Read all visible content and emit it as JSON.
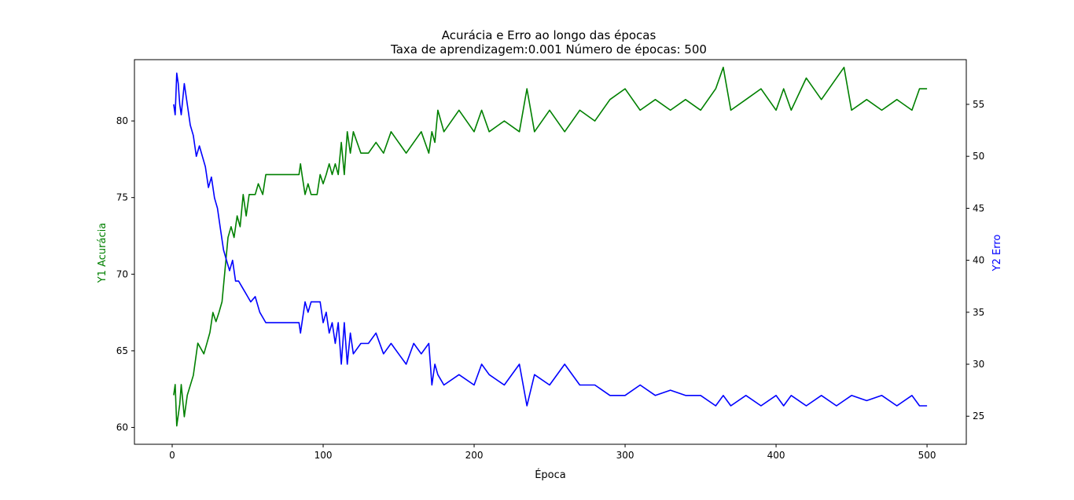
{
  "chart_data": {
    "type": "line",
    "title": "Acurácia e Erro ao longo das épocas",
    "subtitle": "Taxa de aprendizagem:0.001 Número de épocas: 500",
    "xlabel": "Época",
    "ylabel_left": "Y1 Acurácia",
    "ylabel_right": "Y2 Erro",
    "xlim": [
      -25,
      526
    ],
    "ylim_left": [
      58.9,
      84.0
    ],
    "ylim_right": [
      22.3,
      59.3
    ],
    "x_ticks": [
      0,
      100,
      200,
      300,
      400,
      500
    ],
    "y_left_ticks": [
      60,
      65,
      70,
      75,
      80
    ],
    "y_right_ticks": [
      25,
      30,
      35,
      40,
      45,
      50,
      55
    ],
    "grid": false,
    "series": [
      {
        "name": "Y1 Acurácia",
        "axis": "left",
        "color": "#008000",
        "x": [
          1,
          2,
          3,
          5,
          6,
          8,
          10,
          14,
          15,
          17,
          21,
          23,
          25,
          27,
          29,
          31,
          33,
          35,
          37,
          39,
          41,
          43,
          45,
          47,
          49,
          51,
          55,
          57,
          60,
          62,
          65,
          70,
          75,
          80,
          84,
          85,
          86,
          88,
          90,
          92,
          94,
          96,
          98,
          100,
          102,
          104,
          106,
          108,
          110,
          112,
          114,
          116,
          118,
          120,
          125,
          130,
          135,
          140,
          145,
          150,
          155,
          160,
          165,
          170,
          172,
          174,
          176,
          180,
          190,
          200,
          205,
          210,
          220,
          230,
          235,
          240,
          250,
          260,
          270,
          280,
          290,
          300,
          310,
          320,
          330,
          340,
          350,
          360,
          365,
          370,
          380,
          390,
          400,
          405,
          410,
          420,
          430,
          440,
          445,
          450,
          460,
          470,
          480,
          490,
          495,
          500
        ],
        "values": [
          62.1,
          62.8,
          60.1,
          61.5,
          62.8,
          60.7,
          62.1,
          63.4,
          64.1,
          65.5,
          64.8,
          65.5,
          66.2,
          67.5,
          66.9,
          67.5,
          68.2,
          70.3,
          72.4,
          73.1,
          72.4,
          73.8,
          73.1,
          75.2,
          73.8,
          75.2,
          75.2,
          75.9,
          75.2,
          76.5,
          76.5,
          76.5,
          76.5,
          76.5,
          76.5,
          77.2,
          76.5,
          75.2,
          75.9,
          75.2,
          75.2,
          75.2,
          76.5,
          75.9,
          76.5,
          77.2,
          76.5,
          77.2,
          76.5,
          78.6,
          76.5,
          79.3,
          77.9,
          79.3,
          77.9,
          77.9,
          78.6,
          77.9,
          79.3,
          78.6,
          77.9,
          78.6,
          79.3,
          77.9,
          79.3,
          78.6,
          80.7,
          79.3,
          80.7,
          79.3,
          80.7,
          79.3,
          80.0,
          79.3,
          82.1,
          79.3,
          80.7,
          79.3,
          80.7,
          80.0,
          81.4,
          82.1,
          80.7,
          81.4,
          80.7,
          81.4,
          80.7,
          82.1,
          83.5,
          80.7,
          81.4,
          82.1,
          80.7,
          82.1,
          80.7,
          82.8,
          81.4,
          82.8,
          83.5,
          80.7,
          81.4,
          80.7,
          81.4,
          80.7,
          82.1,
          82.1
        ]
      },
      {
        "name": "Y2 Erro",
        "axis": "right",
        "color": "#0000ff",
        "x": [
          1,
          2,
          3,
          4,
          5,
          6,
          8,
          10,
          12,
          14,
          16,
          18,
          20,
          22,
          24,
          26,
          28,
          30,
          32,
          34,
          36,
          38,
          40,
          42,
          44,
          46,
          48,
          50,
          52,
          55,
          58,
          60,
          62,
          65,
          70,
          75,
          80,
          84,
          85,
          86,
          88,
          90,
          92,
          94,
          96,
          98,
          100,
          102,
          104,
          106,
          108,
          110,
          112,
          114,
          116,
          118,
          120,
          125,
          130,
          135,
          140,
          145,
          150,
          155,
          160,
          165,
          170,
          172,
          174,
          176,
          180,
          190,
          200,
          205,
          210,
          220,
          230,
          235,
          240,
          250,
          260,
          270,
          280,
          290,
          300,
          310,
          320,
          330,
          340,
          350,
          360,
          365,
          370,
          380,
          390,
          400,
          405,
          410,
          420,
          430,
          440,
          445,
          450,
          460,
          470,
          480,
          490,
          495,
          500
        ],
        "values": [
          55.0,
          54.0,
          58.0,
          57.0,
          55.0,
          54.0,
          57.0,
          55.0,
          53.0,
          52.0,
          50.0,
          51.0,
          50.0,
          49.0,
          47.0,
          48.0,
          46.0,
          45.0,
          43.0,
          41.0,
          40.0,
          39.0,
          40.0,
          38.0,
          38.0,
          37.5,
          37.0,
          36.5,
          36.0,
          36.5,
          35.0,
          34.5,
          34.0,
          34.0,
          34.0,
          34.0,
          34.0,
          34.0,
          33.0,
          34.0,
          36.0,
          35.0,
          36.0,
          36.0,
          36.0,
          36.0,
          34.0,
          35.0,
          33.0,
          34.0,
          32.0,
          34.0,
          30.0,
          34.0,
          30.0,
          33.0,
          31.0,
          32.0,
          32.0,
          33.0,
          31.0,
          32.0,
          31.0,
          30.0,
          32.0,
          31.0,
          32.0,
          28.0,
          30.0,
          29.0,
          28.0,
          29.0,
          28.0,
          30.0,
          29.0,
          28.0,
          30.0,
          26.0,
          29.0,
          28.0,
          30.0,
          28.0,
          28.0,
          27.0,
          27.0,
          28.0,
          27.0,
          27.5,
          27.0,
          27.0,
          26.0,
          27.0,
          26.0,
          27.0,
          26.0,
          27.0,
          26.0,
          27.0,
          26.0,
          27.0,
          26.0,
          26.5,
          27.0,
          26.5,
          27.0,
          26.0,
          27.0,
          26.0,
          26.0
        ]
      }
    ]
  }
}
